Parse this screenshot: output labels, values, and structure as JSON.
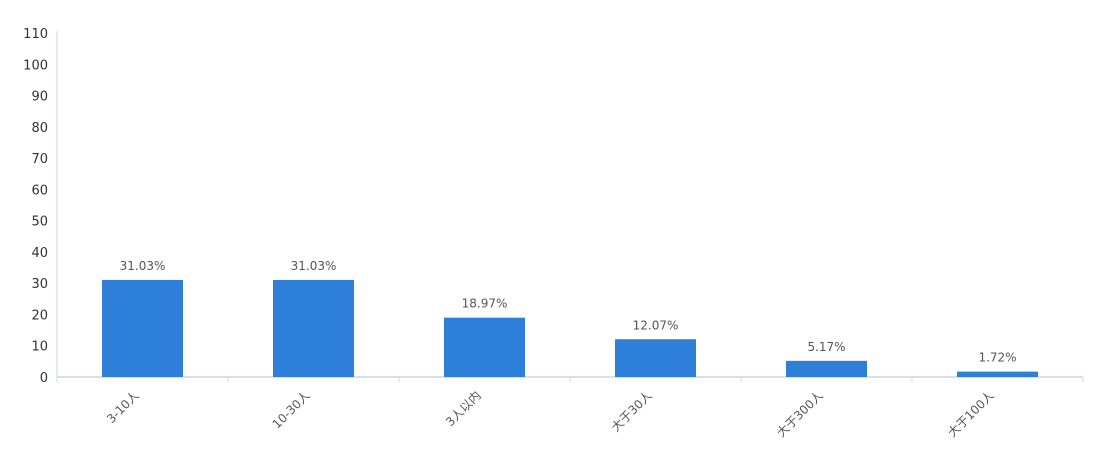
{
  "chart_data": {
    "type": "bar",
    "categories": [
      "3-10人",
      "10-30人",
      "3人以内",
      "大于30人",
      "大于300人",
      "大于100人"
    ],
    "values": [
      31.03,
      31.03,
      18.97,
      12.07,
      5.17,
      1.72
    ],
    "value_labels": [
      "31.03%",
      "31.03%",
      "18.97%",
      "12.07%",
      "5.17%",
      "1.72%"
    ],
    "y_ticks": [
      "0",
      "10",
      "20",
      "30",
      "40",
      "50",
      "60",
      "70",
      "80",
      "90",
      "100",
      "110"
    ],
    "ylim": [
      0,
      110
    ],
    "title": "",
    "xlabel": "",
    "ylabel": "",
    "grid": false,
    "bar_color": "#2e7fd9",
    "axis_color": "#c8d7e6"
  }
}
